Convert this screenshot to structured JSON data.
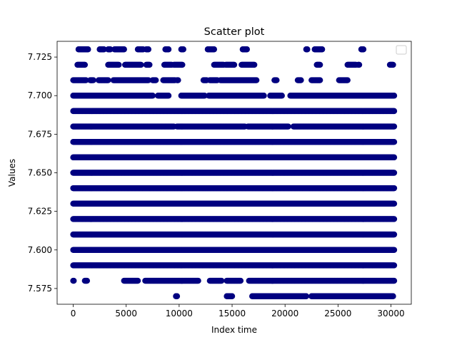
{
  "chart_data": {
    "type": "scatter",
    "title": "Scatter plot",
    "xlabel": "Index time",
    "ylabel": "Values",
    "xlim": [
      -1520,
      31920
    ],
    "ylim": [
      7.5648,
      7.7352
    ],
    "xticks": [
      0,
      5000,
      10000,
      15000,
      20000,
      25000,
      30000
    ],
    "xtick_labels": [
      "0",
      "5000",
      "10000",
      "15000",
      "20000",
      "25000",
      "30000"
    ],
    "yticks": [
      7.575,
      7.6,
      7.625,
      7.65,
      7.675,
      7.7,
      7.725
    ],
    "ytick_labels": [
      "7.575",
      "7.600",
      "7.625",
      "7.650",
      "7.675",
      "7.700",
      "7.725"
    ],
    "grid": false,
    "legend": {
      "placement": "top-right",
      "entries": [
        ""
      ]
    },
    "marker_color": "#000080",
    "series": [
      {
        "levels": [
          {
            "y": 7.57,
            "segments": [
              [
                9700,
                9800
              ],
              [
                14500,
                15000
              ],
              [
                16900,
                22000
              ],
              [
                22500,
                30200
              ]
            ]
          },
          {
            "y": 7.58,
            "segments": [
              [
                0,
                50
              ],
              [
                1100,
                1300
              ],
              [
                4800,
                6100
              ],
              [
                6800,
                11800
              ],
              [
                12900,
                14000
              ],
              [
                14500,
                15800
              ],
              [
                16600,
                30300
              ]
            ]
          },
          {
            "y": 7.59,
            "segments": [
              [
                0,
                30300
              ]
            ]
          },
          {
            "y": 7.6,
            "segments": [
              [
                0,
                30300
              ]
            ]
          },
          {
            "y": 7.61,
            "segments": [
              [
                0,
                30300
              ]
            ]
          },
          {
            "y": 7.62,
            "segments": [
              [
                0,
                30300
              ]
            ]
          },
          {
            "y": 7.63,
            "segments": [
              [
                0,
                30300
              ]
            ]
          },
          {
            "y": 7.64,
            "segments": [
              [
                0,
                30300
              ]
            ]
          },
          {
            "y": 7.65,
            "segments": [
              [
                0,
                30300
              ]
            ]
          },
          {
            "y": 7.66,
            "segments": [
              [
                0,
                30300
              ]
            ]
          },
          {
            "y": 7.67,
            "segments": [
              [
                0,
                30300
              ]
            ]
          },
          {
            "y": 7.68,
            "segments": [
              [
                0,
                9500
              ],
              [
                9800,
                16200
              ],
              [
                16500,
                20300
              ],
              [
                20800,
                30300
              ]
            ]
          },
          {
            "y": 7.69,
            "segments": [
              [
                0,
                30300
              ]
            ]
          },
          {
            "y": 7.7,
            "segments": [
              [
                0,
                7500
              ],
              [
                8000,
                9000
              ],
              [
                10200,
                12400
              ],
              [
                12800,
                18000
              ],
              [
                18600,
                19700
              ],
              [
                20500,
                30300
              ]
            ]
          },
          {
            "y": 7.71,
            "segments": [
              [
                0,
                1200
              ],
              [
                1600,
                1900
              ],
              [
                2400,
                3300
              ],
              [
                3800,
                7100
              ],
              [
                7500,
                7800
              ],
              [
                8500,
                9600
              ],
              [
                9800,
                9900
              ],
              [
                12300,
                12600
              ],
              [
                12900,
                13600
              ],
              [
                13900,
                17300
              ],
              [
                19000,
                19200
              ],
              [
                21200,
                21500
              ],
              [
                22500,
                23300
              ],
              [
                25100,
                25900
              ]
            ]
          },
          {
            "y": 7.72,
            "segments": [
              [
                400,
                1100
              ],
              [
                3300,
                4300
              ],
              [
                4900,
                6400
              ],
              [
                6900,
                7200
              ],
              [
                8600,
                9300
              ],
              [
                9500,
                10300
              ],
              [
                13300,
                14200
              ],
              [
                14400,
                15200
              ],
              [
                15900,
                17100
              ],
              [
                23000,
                23300
              ],
              [
                25900,
                26700
              ],
              [
                26900,
                27000
              ],
              [
                29900,
                30200
              ]
            ]
          },
          {
            "y": 7.73,
            "segments": [
              [
                500,
                1400
              ],
              [
                2500,
                2900
              ],
              [
                3300,
                3500
              ],
              [
                3900,
                4800
              ],
              [
                6100,
                6600
              ],
              [
                6900,
                7100
              ],
              [
                8700,
                9000
              ],
              [
                10200,
                10400
              ],
              [
                12700,
                13300
              ],
              [
                16000,
                16400
              ],
              [
                22000,
                22100
              ],
              [
                22800,
                23500
              ],
              [
                27200,
                27400
              ]
            ]
          }
        ]
      }
    ]
  }
}
